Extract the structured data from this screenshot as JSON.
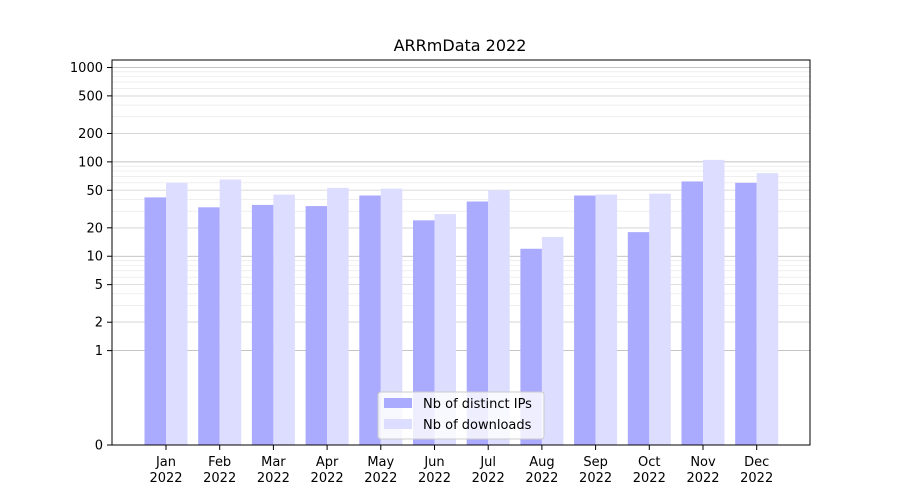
{
  "chart_data": {
    "type": "bar",
    "title": "ARRmData 2022",
    "xlabel": "",
    "ylabel": "",
    "y_scale": "symlog",
    "ylim": [
      0,
      1200
    ],
    "grid": true,
    "legend_position": "bottom-center",
    "categories": [
      [
        "Jan",
        "2022"
      ],
      [
        "Feb",
        "2022"
      ],
      [
        "Mar",
        "2022"
      ],
      [
        "Apr",
        "2022"
      ],
      [
        "May",
        "2022"
      ],
      [
        "Jun",
        "2022"
      ],
      [
        "Jul",
        "2022"
      ],
      [
        "Aug",
        "2022"
      ],
      [
        "Sep",
        "2022"
      ],
      [
        "Oct",
        "2022"
      ],
      [
        "Nov",
        "2022"
      ],
      [
        "Dec",
        "2022"
      ]
    ],
    "y_ticks": [
      {
        "value": 0,
        "label": "0"
      },
      {
        "value": 1,
        "label": "1"
      },
      {
        "value": 2,
        "label": "2"
      },
      {
        "value": 5,
        "label": "5"
      },
      {
        "value": 10,
        "label": "10"
      },
      {
        "value": 20,
        "label": "20"
      },
      {
        "value": 50,
        "label": "50"
      },
      {
        "value": 100,
        "label": "100"
      },
      {
        "value": 200,
        "label": "200"
      },
      {
        "value": 500,
        "label": "500"
      },
      {
        "value": 1000,
        "label": "1000"
      }
    ],
    "series": [
      {
        "name": "Nb of distinct IPs",
        "color": "#aaaaff",
        "values": [
          42,
          33,
          35,
          34,
          44,
          24,
          38,
          12,
          44,
          18,
          62,
          60
        ]
      },
      {
        "name": "Nb of downloads",
        "color": "#ddddff",
        "values": [
          60,
          65,
          45,
          53,
          52,
          28,
          50,
          16,
          45,
          46,
          105,
          76
        ]
      }
    ]
  }
}
